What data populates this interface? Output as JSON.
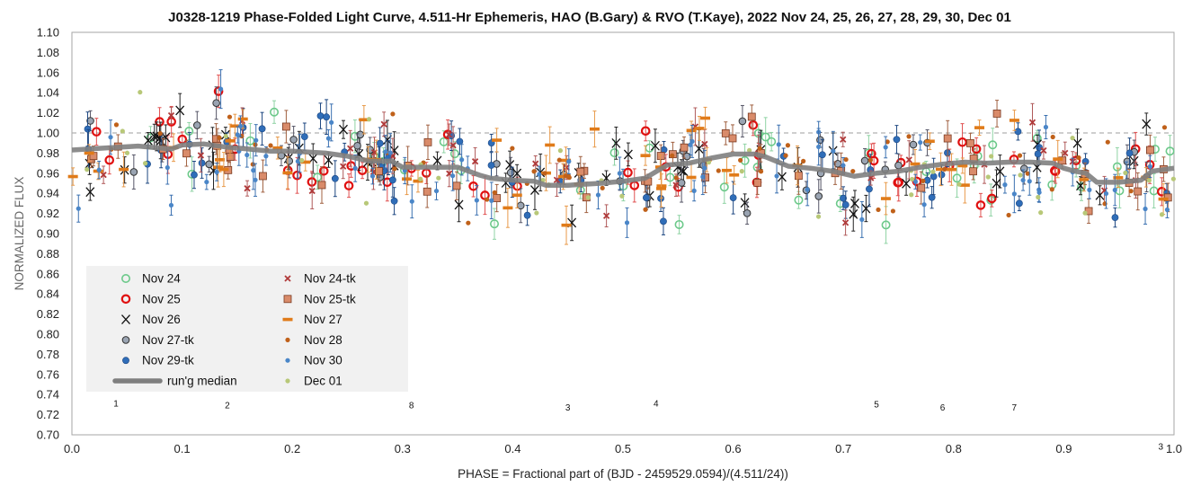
{
  "chart_data": {
    "type": "scatter",
    "title": "J0328-1219 Phase-Folded Light Curve, 4.511-Hr Ephemeris, HAO (B.Gary) & RVO (T.Kaye), 2022 Nov 24, 25, 26, 27, 28, 29, 30, Dec 01",
    "xlabel": "PHASE = Fractional part of (BJD - 2459529.0594)/(4.511/24))",
    "ylabel": "NORMALIZED FLUX",
    "xlim": [
      0.0,
      1.0
    ],
    "ylim": [
      0.7,
      1.1
    ],
    "x_ticks": [
      "0.0",
      "0.1",
      "0.2",
      "0.3",
      "0.4",
      "0.5",
      "0.6",
      "0.7",
      "0.8",
      "0.9",
      "1.0"
    ],
    "y_ticks": [
      "0.70",
      "0.72",
      "0.74",
      "0.76",
      "0.78",
      "0.80",
      "0.82",
      "0.84",
      "0.86",
      "0.88",
      "0.90",
      "0.92",
      "0.94",
      "0.96",
      "0.98",
      "1.00",
      "1.02",
      "1.04",
      "1.06",
      "1.08",
      "1.10"
    ],
    "reference_line": 1.0,
    "grid": false,
    "legend_position": "bottom-left",
    "series": [
      {
        "name": "Nov 24",
        "marker": "open-circle",
        "color": "#6cc98a"
      },
      {
        "name": "Nov 25",
        "marker": "open-circle-thick",
        "color": "#e01010"
      },
      {
        "name": "Nov 26",
        "marker": "x-cross",
        "color": "#111111"
      },
      {
        "name": "Nov 27-tk",
        "marker": "filled-circle-edged",
        "color": "#9aa4b2"
      },
      {
        "name": "Nov 29-tk",
        "marker": "filled-circle",
        "color": "#2f6db8"
      },
      {
        "name": "run'g median",
        "marker": "thick-line",
        "color": "#7f7f7f"
      },
      {
        "name": "Nov 24-tk",
        "marker": "small-x",
        "color": "#b03a3a"
      },
      {
        "name": "Nov 25-tk",
        "marker": "square",
        "color": "#d98b6a"
      },
      {
        "name": "Nov 27",
        "marker": "dash",
        "color": "#e07b1a"
      },
      {
        "name": "Nov 28",
        "marker": "small-dot",
        "color": "#c0611a"
      },
      {
        "name": "Nov 30",
        "marker": "small-dot",
        "color": "#4a86c8"
      },
      {
        "name": "Dec 01",
        "marker": "small-dot",
        "color": "#b8c878"
      }
    ],
    "running_median": {
      "x": [
        0.0,
        0.03,
        0.06,
        0.09,
        0.1,
        0.12,
        0.14,
        0.16,
        0.18,
        0.2,
        0.23,
        0.25,
        0.27,
        0.29,
        0.3,
        0.31,
        0.33,
        0.35,
        0.37,
        0.38,
        0.4,
        0.42,
        0.43,
        0.45,
        0.48,
        0.5,
        0.52,
        0.54,
        0.56,
        0.58,
        0.6,
        0.62,
        0.63,
        0.65,
        0.67,
        0.69,
        0.71,
        0.73,
        0.75,
        0.77,
        0.79,
        0.81,
        0.83,
        0.85,
        0.87,
        0.89,
        0.9,
        0.91,
        0.92,
        0.93,
        0.95,
        0.97,
        0.98,
        1.0
      ],
      "y": [
        0.983,
        0.985,
        0.987,
        0.984,
        0.988,
        0.989,
        0.986,
        0.984,
        0.982,
        0.982,
        0.98,
        0.977,
        0.972,
        0.972,
        0.966,
        0.966,
        0.966,
        0.966,
        0.958,
        0.955,
        0.953,
        0.952,
        0.948,
        0.948,
        0.95,
        0.952,
        0.955,
        0.968,
        0.97,
        0.975,
        0.979,
        0.979,
        0.976,
        0.967,
        0.965,
        0.962,
        0.957,
        0.96,
        0.962,
        0.966,
        0.969,
        0.971,
        0.97,
        0.971,
        0.971,
        0.97,
        0.965,
        0.962,
        0.96,
        0.951,
        0.951,
        0.953,
        0.962,
        0.965
      ]
    },
    "annotations": [
      {
        "text": "1",
        "x": 0.04,
        "y": 0.731
      },
      {
        "text": "2",
        "x": 0.141,
        "y": 0.729
      },
      {
        "text": "8",
        "x": 0.308,
        "y": 0.729
      },
      {
        "text": "3",
        "x": 0.45,
        "y": 0.727
      },
      {
        "text": "4",
        "x": 0.53,
        "y": 0.731
      },
      {
        "text": "5",
        "x": 0.73,
        "y": 0.73
      },
      {
        "text": "6",
        "x": 0.79,
        "y": 0.727
      },
      {
        "text": "7",
        "x": 0.855,
        "y": 0.727
      },
      {
        "text": "3",
        "x": 0.988,
        "y": 0.688
      }
    ],
    "reference_line_label": ""
  }
}
